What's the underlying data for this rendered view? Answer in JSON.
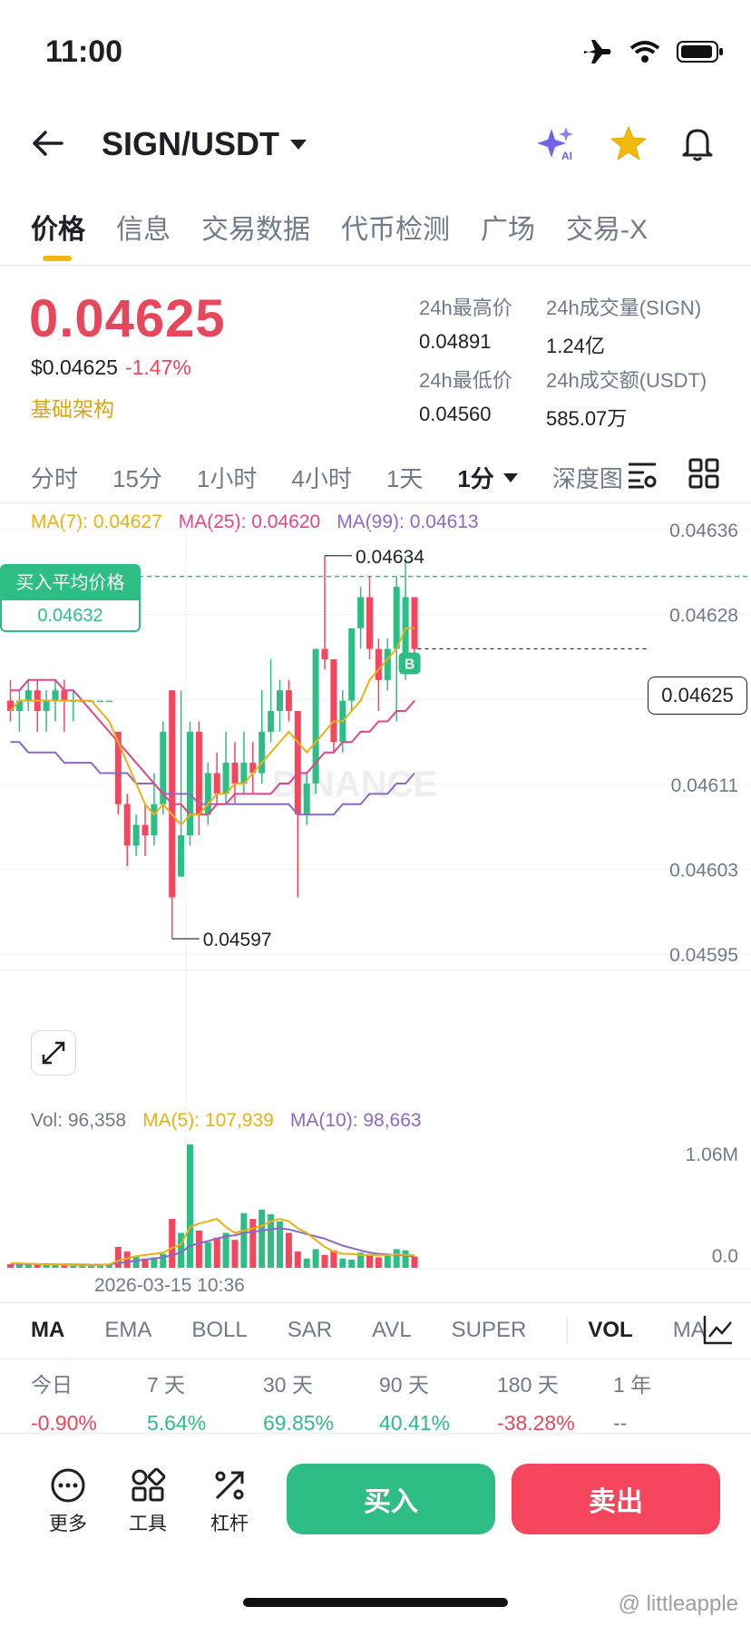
{
  "status_bar": {
    "time": "11:00"
  },
  "header": {
    "pair": "SIGN/USDT"
  },
  "tabs": [
    "价格",
    "信息",
    "交易数据",
    "代币检测",
    "广场",
    "交易-X"
  ],
  "price": {
    "last": "0.04625",
    "usd": "$0.04625",
    "change": "-1.47%",
    "sector": "基础架构"
  },
  "stats": {
    "high_label": "24h最高价",
    "high": "0.04891",
    "vol_label": "24h成交量(SIGN)",
    "vol": "1.24亿",
    "low_label": "24h最低价",
    "low": "0.04560",
    "amt_label": "24h成交额(USDT)",
    "amt": "585.07万"
  },
  "intervals": [
    "分时",
    "15分",
    "1小时",
    "4小时",
    "1天"
  ],
  "interval_selected": "1分",
  "depth_label": "深度图",
  "ma": {
    "ma7": "MA(7): 0.04627",
    "ma25": "MA(25): 0.04620",
    "ma99": "MA(99): 0.04613"
  },
  "chart_labels": {
    "avg_buy_title": "买入平均价格",
    "avg_buy_value": "0.04632",
    "high_marker": "0.04634",
    "low_marker": "0.04597",
    "current_price": "0.04625",
    "buy_badge": "B",
    "watermark": "BINANCE",
    "date": "2026-03-15 10:36"
  },
  "volume": {
    "vol": "Vol: 96,358",
    "ma5": "MA(5): 107,939",
    "ma10": "MA(10): 98,663"
  },
  "chart_data": {
    "type": "candlestick",
    "price_axis_ticks": [
      "0.04636",
      "0.04628",
      "0.04620",
      "0.04611",
      "0.04603",
      "0.04595"
    ],
    "volume_axis_ticks": [
      "1.06M",
      "0.0"
    ],
    "ylim": [
      0.04595,
      0.04636
    ],
    "candles": [
      {
        "o": 0.0462,
        "c": 0.04619,
        "h": 0.04622,
        "l": 0.04618
      },
      {
        "o": 0.04619,
        "c": 0.0462,
        "h": 0.04621,
        "l": 0.04617
      },
      {
        "o": 0.0462,
        "c": 0.04621,
        "h": 0.04622,
        "l": 0.04619
      },
      {
        "o": 0.04621,
        "c": 0.04619,
        "h": 0.04622,
        "l": 0.04617
      },
      {
        "o": 0.04619,
        "c": 0.0462,
        "h": 0.04621,
        "l": 0.04617
      },
      {
        "o": 0.0462,
        "c": 0.04621,
        "h": 0.04622,
        "l": 0.04618
      },
      {
        "o": 0.04621,
        "c": 0.0462,
        "h": 0.04622,
        "l": 0.04617
      },
      {
        "o": 0.0462,
        "c": 0.0462,
        "h": 0.04621,
        "l": 0.04618
      },
      {
        "o": 0.0462,
        "c": 0.0462,
        "h": 0.0462,
        "l": 0.0462
      },
      {
        "o": 0.0462,
        "c": 0.0462,
        "h": 0.0462,
        "l": 0.0462
      },
      {
        "o": 0.0462,
        "c": 0.0462,
        "h": 0.0462,
        "l": 0.0462
      },
      {
        "o": 0.0462,
        "c": 0.0462,
        "h": 0.0462,
        "l": 0.0462
      },
      {
        "o": 0.04617,
        "c": 0.0461,
        "h": 0.04617,
        "l": 0.04609
      },
      {
        "o": 0.0461,
        "c": 0.04606,
        "h": 0.04611,
        "l": 0.04604
      },
      {
        "o": 0.04606,
        "c": 0.04608,
        "h": 0.04609,
        "l": 0.04605
      },
      {
        "o": 0.04608,
        "c": 0.04607,
        "h": 0.0461,
        "l": 0.04605
      },
      {
        "o": 0.04607,
        "c": 0.0461,
        "h": 0.04613,
        "l": 0.04606
      },
      {
        "o": 0.0461,
        "c": 0.04617,
        "h": 0.04618,
        "l": 0.04609
      },
      {
        "o": 0.04621,
        "c": 0.04601,
        "h": 0.04621,
        "l": 0.04597
      },
      {
        "o": 0.04603,
        "c": 0.04607,
        "h": 0.04621,
        "l": 0.04603
      },
      {
        "o": 0.04607,
        "c": 0.04617,
        "h": 0.04618,
        "l": 0.04606
      },
      {
        "o": 0.04617,
        "c": 0.04609,
        "h": 0.04618,
        "l": 0.04607
      },
      {
        "o": 0.04609,
        "c": 0.04613,
        "h": 0.04614,
        "l": 0.04608
      },
      {
        "o": 0.04613,
        "c": 0.04611,
        "h": 0.04615,
        "l": 0.0461
      },
      {
        "o": 0.04611,
        "c": 0.04614,
        "h": 0.04617,
        "l": 0.0461
      },
      {
        "o": 0.04614,
        "c": 0.04612,
        "h": 0.04616,
        "l": 0.0461
      },
      {
        "o": 0.04612,
        "c": 0.04614,
        "h": 0.04617,
        "l": 0.04611
      },
      {
        "o": 0.04614,
        "c": 0.04613,
        "h": 0.04616,
        "l": 0.04611
      },
      {
        "o": 0.04613,
        "c": 0.04617,
        "h": 0.04621,
        "l": 0.04612
      },
      {
        "o": 0.04617,
        "c": 0.04619,
        "h": 0.04624,
        "l": 0.04616
      },
      {
        "o": 0.04619,
        "c": 0.04621,
        "h": 0.04622,
        "l": 0.04617
      },
      {
        "o": 0.04621,
        "c": 0.04619,
        "h": 0.04622,
        "l": 0.04618
      },
      {
        "o": 0.04619,
        "c": 0.04609,
        "h": 0.04619,
        "l": 0.04601
      },
      {
        "o": 0.04609,
        "c": 0.04612,
        "h": 0.04613,
        "l": 0.04608
      },
      {
        "o": 0.04612,
        "c": 0.04625,
        "h": 0.04625,
        "l": 0.04611
      },
      {
        "o": 0.04625,
        "c": 0.04624,
        "h": 0.04634,
        "l": 0.04623
      },
      {
        "o": 0.04624,
        "c": 0.04616,
        "h": 0.04624,
        "l": 0.04615
      },
      {
        "o": 0.04616,
        "c": 0.0462,
        "h": 0.04621,
        "l": 0.04615
      },
      {
        "o": 0.0462,
        "c": 0.04627,
        "h": 0.04627,
        "l": 0.04619
      },
      {
        "o": 0.04627,
        "c": 0.0463,
        "h": 0.04631,
        "l": 0.04625
      },
      {
        "o": 0.0463,
        "c": 0.04625,
        "h": 0.04632,
        "l": 0.04624
      },
      {
        "o": 0.04625,
        "c": 0.04622,
        "h": 0.04626,
        "l": 0.04619
      },
      {
        "o": 0.04622,
        "c": 0.04625,
        "h": 0.04626,
        "l": 0.04621
      },
      {
        "o": 0.04625,
        "c": 0.04631,
        "h": 0.04632,
        "l": 0.04618
      },
      {
        "o": 0.04624,
        "c": 0.0463,
        "h": 0.04634,
        "l": 0.04622
      },
      {
        "o": 0.0463,
        "c": 0.04625,
        "h": 0.0463,
        "l": 0.04624
      }
    ],
    "ma7": [
      0.04619,
      0.0462,
      0.0462,
      0.0462,
      0.0462,
      0.0462,
      0.0462,
      0.0462,
      0.0462,
      0.0462,
      0.04619,
      0.04618,
      0.04616,
      0.04614,
      0.04612,
      0.0461,
      0.04609,
      0.0461,
      0.04609,
      0.04608,
      0.04609,
      0.04609,
      0.0461,
      0.04611,
      0.04611,
      0.04612,
      0.04612,
      0.04613,
      0.04614,
      0.04615,
      0.04616,
      0.04617,
      0.04616,
      0.04615,
      0.04616,
      0.04617,
      0.04618,
      0.04618,
      0.04619,
      0.0462,
      0.04622,
      0.04623,
      0.04624,
      0.04625,
      0.04627,
      0.04627
    ],
    "ma25": [
      0.04621,
      0.04621,
      0.04622,
      0.04622,
      0.04622,
      0.04622,
      0.04621,
      0.04621,
      0.0462,
      0.04619,
      0.04618,
      0.04617,
      0.04616,
      0.04615,
      0.04614,
      0.04613,
      0.04612,
      0.04611,
      0.0461,
      0.0461,
      0.04609,
      0.04609,
      0.04609,
      0.0461,
      0.0461,
      0.04611,
      0.04611,
      0.04611,
      0.04611,
      0.04611,
      0.04612,
      0.04612,
      0.04613,
      0.04613,
      0.04614,
      0.04615,
      0.04615,
      0.04616,
      0.04616,
      0.04617,
      0.04617,
      0.04618,
      0.04618,
      0.04619,
      0.04619,
      0.0462
    ],
    "ma99": [
      0.04616,
      0.04616,
      0.04615,
      0.04615,
      0.04615,
      0.04615,
      0.04614,
      0.04614,
      0.04614,
      0.04614,
      0.04613,
      0.04613,
      0.04613,
      0.04613,
      0.04612,
      0.04612,
      0.04612,
      0.04611,
      0.04611,
      0.04611,
      0.04611,
      0.0461,
      0.0461,
      0.0461,
      0.0461,
      0.0461,
      0.0461,
      0.0461,
      0.0461,
      0.0461,
      0.0461,
      0.0461,
      0.04609,
      0.04609,
      0.04609,
      0.04609,
      0.04609,
      0.0461,
      0.0461,
      0.0461,
      0.04611,
      0.04611,
      0.04611,
      0.04612,
      0.04612,
      0.04613
    ],
    "avg_buy_price": 0.04632,
    "last_price": 0.04625,
    "volume_max": 1060000,
    "volumes": [
      30000,
      40000,
      35000,
      30000,
      25000,
      30000,
      28000,
      22000,
      20000,
      18000,
      20000,
      22000,
      180000,
      140000,
      100000,
      80000,
      90000,
      120000,
      420000,
      300000,
      1060000,
      320000,
      220000,
      260000,
      300000,
      240000,
      470000,
      420000,
      500000,
      460000,
      400000,
      300000,
      140000,
      80000,
      160000,
      110000,
      150000,
      80000,
      70000,
      130000,
      110000,
      90000,
      120000,
      160000,
      150000,
      96358
    ],
    "vol_ma5": [
      40000,
      38000,
      35000,
      32000,
      30000,
      28000,
      26000,
      24000,
      22000,
      21000,
      20000,
      30000,
      60000,
      80000,
      100000,
      110000,
      120000,
      130000,
      170000,
      200000,
      350000,
      380000,
      400000,
      420000,
      350000,
      300000,
      320000,
      340000,
      360000,
      400000,
      420000,
      400000,
      340000,
      300000,
      240000,
      180000,
      140000,
      120000,
      120000,
      110000,
      110000,
      110000,
      110000,
      115000,
      110000,
      107939
    ],
    "vol_ma10": [
      35000,
      34000,
      33000,
      32000,
      31000,
      30000,
      29000,
      28000,
      27000,
      26000,
      25000,
      28000,
      40000,
      50000,
      60000,
      70000,
      80000,
      90000,
      110000,
      130000,
      190000,
      210000,
      230000,
      250000,
      270000,
      280000,
      300000,
      310000,
      320000,
      330000,
      340000,
      330000,
      310000,
      290000,
      270000,
      250000,
      220000,
      190000,
      170000,
      150000,
      130000,
      120000,
      115000,
      110000,
      105000,
      98663
    ]
  },
  "indicators": [
    "MA",
    "EMA",
    "BOLL",
    "SAR",
    "AVL",
    "SUPER"
  ],
  "indicator_vol": "VOL",
  "indicator_ma_cut": "MA",
  "performance": [
    {
      "label": "今日",
      "value": "-0.90%",
      "tone": "red"
    },
    {
      "label": "7 天",
      "value": "5.64%",
      "tone": "green"
    },
    {
      "label": "30 天",
      "value": "69.85%",
      "tone": "green"
    },
    {
      "label": "90 天",
      "value": "40.41%",
      "tone": "green"
    },
    {
      "label": "180 天",
      "value": "-38.28%",
      "tone": "red"
    },
    {
      "label": "1 年",
      "value": "--",
      "tone": "grey"
    }
  ],
  "bottom": {
    "more": "更多",
    "tools": "工具",
    "leverage": "杠杆",
    "buy": "买入",
    "sell": "卖出"
  },
  "watermark_user": "@ littleapple",
  "colors": {
    "up": "#2ebd85",
    "down": "#f6465d",
    "accent": "#f0b90b"
  }
}
